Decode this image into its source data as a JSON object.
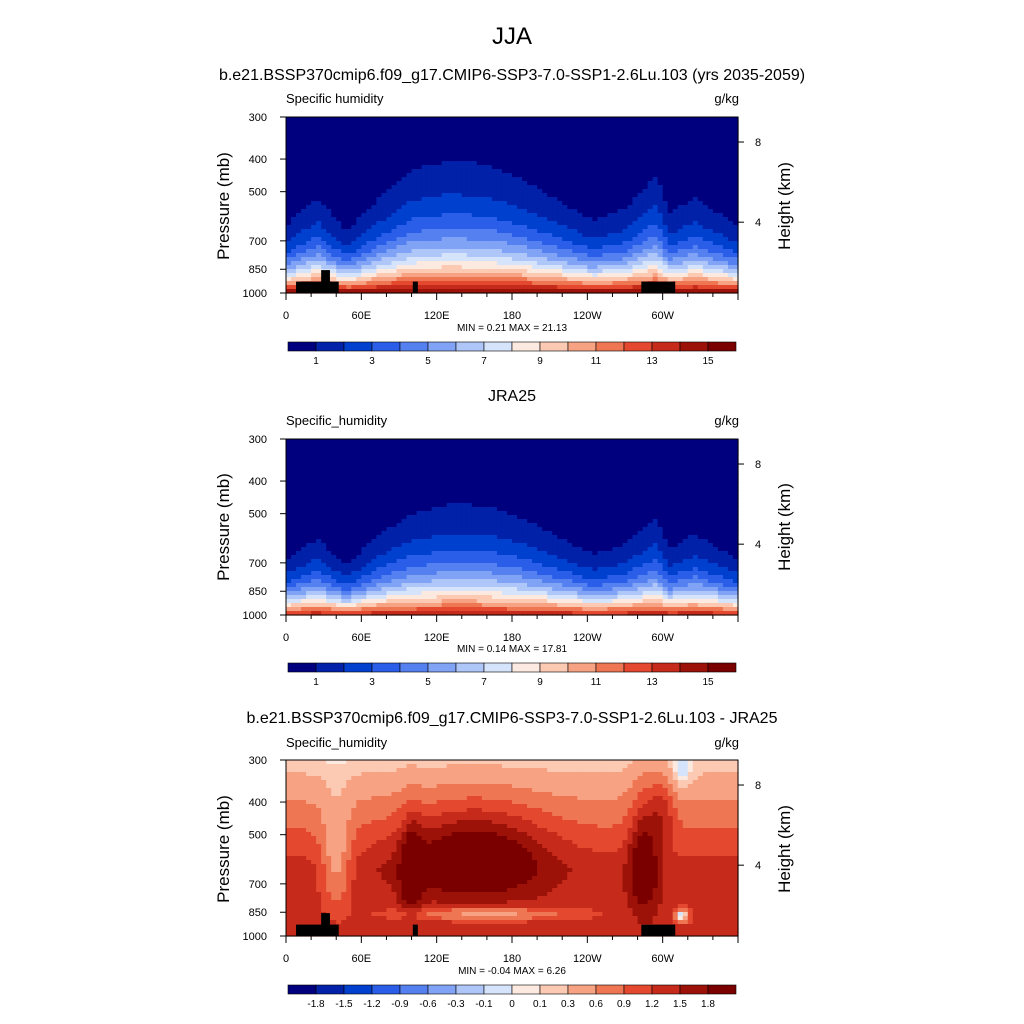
{
  "page": {
    "title": "JJA"
  },
  "chart_data": [
    {
      "type": "heatmap",
      "title": "b.e21.BSSP370cmip6.f09_g17.CMIP6-SSP3-7.0-SSP1-2.6Lu.103 (yrs 2035-2059)",
      "left_label": "Specific humidity",
      "units": "g/kg",
      "ylabel": "Pressure (mb)",
      "right_label": "Height (km)",
      "y_ticks": [
        300,
        400,
        500,
        700,
        850,
        1000
      ],
      "height_ticks": [
        8,
        4
      ],
      "x_tick_labels": [
        "0",
        "60E",
        "120E",
        "180",
        "120W",
        "60W"
      ],
      "min_max_text": "MIN =   0.21  MAX =  21.13",
      "colorbar_labels": [
        "1",
        "3",
        "5",
        "7",
        "9",
        "11",
        "13",
        "15"
      ],
      "colorbar_colors": [
        "#00007f",
        "#0021a8",
        "#0040cf",
        "#2a5ee8",
        "#5580f0",
        "#80a3f5",
        "#aec6f8",
        "#d6e4fb",
        "#fce9df",
        "#fcc9b3",
        "#f7a283",
        "#ef7653",
        "#e4492f",
        "#c62a1a",
        "#9c1208",
        "#7a0000"
      ],
      "field": {
        "kind": "absolute",
        "surface": 15.5,
        "decay": 0.145,
        "mid": 8.0,
        "blob": 1.0,
        "columns": [
          {
            "lon": 0,
            "thick": 0.6
          },
          {
            "lon": 25,
            "thick": 0.85
          },
          {
            "lon": 48,
            "thick": 0.55
          },
          {
            "lon": 75,
            "thick": 0.85
          },
          {
            "lon": 100,
            "thick": 1.1
          },
          {
            "lon": 130,
            "thick": 1.18
          },
          {
            "lon": 160,
            "thick": 1.15
          },
          {
            "lon": 190,
            "thick": 1.0
          },
          {
            "lon": 220,
            "thick": 0.8
          },
          {
            "lon": 245,
            "thick": 0.65
          },
          {
            "lon": 270,
            "thick": 0.75
          },
          {
            "lon": 295,
            "thick": 1.05
          },
          {
            "lon": 305,
            "thick": 0.7
          },
          {
            "lon": 325,
            "thick": 0.85
          },
          {
            "lon": 360,
            "thick": 0.6
          }
        ]
      },
      "terrain": [
        {
          "lon0": 8,
          "lon1": 42,
          "p": 925
        },
        {
          "lon0": 28,
          "lon1": 35,
          "p": 855
        },
        {
          "lon0": 101,
          "lon1": 105,
          "p": 925
        },
        {
          "lon0": 283,
          "lon1": 310,
          "p": 925
        }
      ]
    },
    {
      "type": "heatmap",
      "title": "JRA25",
      "left_label": "Specific_humidity",
      "units": "g/kg",
      "ylabel": "Pressure (mb)",
      "right_label": "Height (km)",
      "y_ticks": [
        300,
        400,
        500,
        700,
        850,
        1000
      ],
      "height_ticks": [
        8,
        4
      ],
      "x_tick_labels": [
        "0",
        "60E",
        "120E",
        "180",
        "120W",
        "60W"
      ],
      "min_max_text": "MIN =   0.14  MAX =  17.81",
      "colorbar_labels": [
        "1",
        "3",
        "5",
        "7",
        "9",
        "11",
        "13",
        "15"
      ],
      "colorbar_colors": [
        "#00007f",
        "#0021a8",
        "#0040cf",
        "#2a5ee8",
        "#5580f0",
        "#80a3f5",
        "#aec6f8",
        "#d6e4fb",
        "#fce9df",
        "#fcc9b3",
        "#f7a283",
        "#ef7653",
        "#e4492f",
        "#c62a1a",
        "#9c1208",
        "#7a0000"
      ],
      "field": {
        "kind": "absolute",
        "surface": 14.0,
        "decay": 0.155,
        "mid": 0.0,
        "blob": 0.0,
        "columns": [
          {
            "lon": 0,
            "thick": 0.55
          },
          {
            "lon": 25,
            "thick": 0.75
          },
          {
            "lon": 48,
            "thick": 0.5
          },
          {
            "lon": 75,
            "thick": 0.8
          },
          {
            "lon": 100,
            "thick": 1.0
          },
          {
            "lon": 130,
            "thick": 1.1
          },
          {
            "lon": 160,
            "thick": 1.08
          },
          {
            "lon": 190,
            "thick": 0.95
          },
          {
            "lon": 220,
            "thick": 0.75
          },
          {
            "lon": 245,
            "thick": 0.6
          },
          {
            "lon": 270,
            "thick": 0.7
          },
          {
            "lon": 295,
            "thick": 0.95
          },
          {
            "lon": 305,
            "thick": 0.65
          },
          {
            "lon": 325,
            "thick": 0.8
          },
          {
            "lon": 360,
            "thick": 0.55
          }
        ]
      },
      "terrain": []
    },
    {
      "type": "heatmap",
      "title": "b.e21.BSSP370cmip6.f09_g17.CMIP6-SSP3-7.0-SSP1-2.6Lu.103 - JRA25",
      "left_label": "Specific_humidity",
      "units": "g/kg",
      "ylabel": "Pressure (mb)",
      "right_label": "Height (km)",
      "y_ticks": [
        300,
        400,
        500,
        700,
        850,
        1000
      ],
      "height_ticks": [
        8,
        4
      ],
      "x_tick_labels": [
        "0",
        "60E",
        "120E",
        "180",
        "120W",
        "60W"
      ],
      "min_max_text": "MIN =  -0.04  MAX =   6.26",
      "colorbar_labels": [
        "-1.8",
        "-1.5",
        "-1.2",
        "-0.9",
        "-0.6",
        "-0.3",
        "-0.1",
        "0",
        "0.1",
        "0.3",
        "0.6",
        "0.9",
        "1.2",
        "1.5",
        "1.8"
      ],
      "colorbar_colors": [
        "#00007f",
        "#0021a8",
        "#0040cf",
        "#2a5ee8",
        "#5580f0",
        "#80a3f5",
        "#aec6f8",
        "#d6e4fb",
        "#fce9df",
        "#fcc9b3",
        "#f7a283",
        "#ef7653",
        "#e4492f",
        "#c62a1a",
        "#9c1208",
        "#7a0000"
      ],
      "field": {
        "kind": "difference",
        "levels": [
          -1.8,
          -1.5,
          -1.2,
          -0.9,
          -0.6,
          -0.3,
          -0.1,
          0,
          0.1,
          0.3,
          0.6,
          0.9,
          1.2,
          1.5,
          1.8
        ],
        "base": 1.35,
        "top_value": 0.15,
        "features": [
          {
            "lon": 150,
            "p": 580,
            "rlon": 55,
            "rp": 170,
            "amp": 1.2
          },
          {
            "lon": 40,
            "p": 620,
            "rlon": 12,
            "rp": 220,
            "amp": -0.8
          },
          {
            "lon": 100,
            "p": 650,
            "rlon": 8,
            "rp": 200,
            "amp": 0.9
          },
          {
            "lon": 285,
            "p": 600,
            "rlon": 12,
            "rp": 240,
            "amp": 1.0
          },
          {
            "lon": 160,
            "p": 860,
            "rlon": 70,
            "rp": 40,
            "amp": -0.9
          },
          {
            "lon": 315,
            "p": 870,
            "rlon": 6,
            "rp": 40,
            "amp": -1.5
          },
          {
            "lon": 315,
            "p": 330,
            "rlon": 8,
            "rp": 40,
            "amp": -0.4
          },
          {
            "lon": 300,
            "p": 420,
            "rlon": 10,
            "rp": 100,
            "amp": 0.6
          }
        ]
      },
      "terrain": [
        {
          "lon0": 8,
          "lon1": 42,
          "p": 925
        },
        {
          "lon0": 28,
          "lon1": 35,
          "p": 855
        },
        {
          "lon0": 101,
          "lon1": 105,
          "p": 925
        },
        {
          "lon0": 283,
          "lon1": 310,
          "p": 925
        }
      ]
    }
  ]
}
